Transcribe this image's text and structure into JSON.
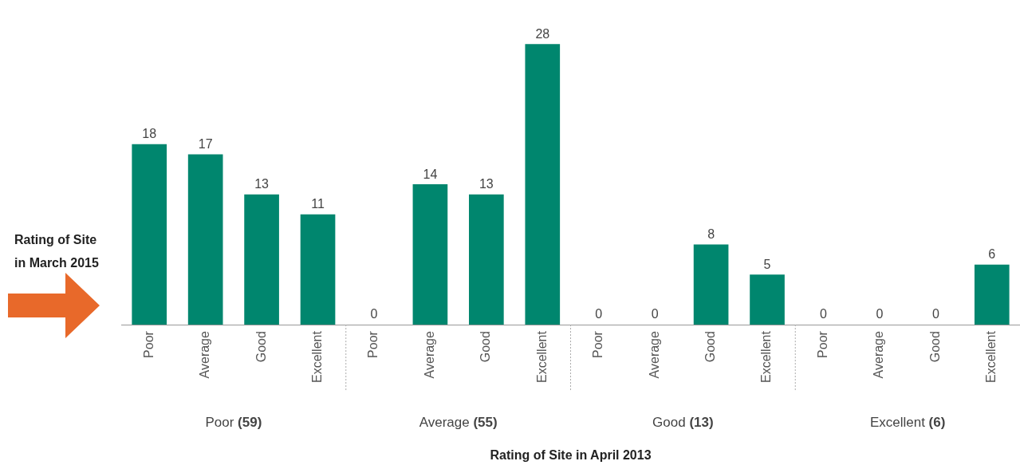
{
  "chart_data": {
    "type": "bar",
    "categories": [
      "Poor",
      "Average",
      "Good",
      "Excellent",
      "Poor",
      "Average",
      "Good",
      "Excellent",
      "Poor",
      "Average",
      "Good",
      "Excellent",
      "Poor",
      "Average",
      "Good",
      "Excellent"
    ],
    "values": [
      18,
      17,
      13,
      11,
      0,
      14,
      13,
      28,
      0,
      0,
      8,
      5,
      0,
      0,
      0,
      6
    ],
    "color": "#00866e",
    "data_labels": true,
    "annotations": [
      "Rating of Site in March 2015",
      "Poor (59)",
      "Average (55)",
      "Good (13)",
      "Excellent (6)",
      "Rating of Site in April 2013"
    ]
  }
}
